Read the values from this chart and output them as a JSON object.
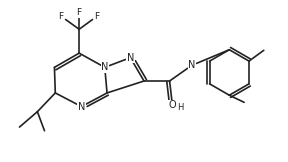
{
  "bg_color": "#ffffff",
  "line_color": "#222222",
  "line_width": 1.2,
  "font_size": 7.0,
  "fig_width": 2.88,
  "fig_height": 1.62,
  "dpi": 100,
  "xlim": [
    0,
    10
  ],
  "ylim": [
    0,
    5.6
  ]
}
